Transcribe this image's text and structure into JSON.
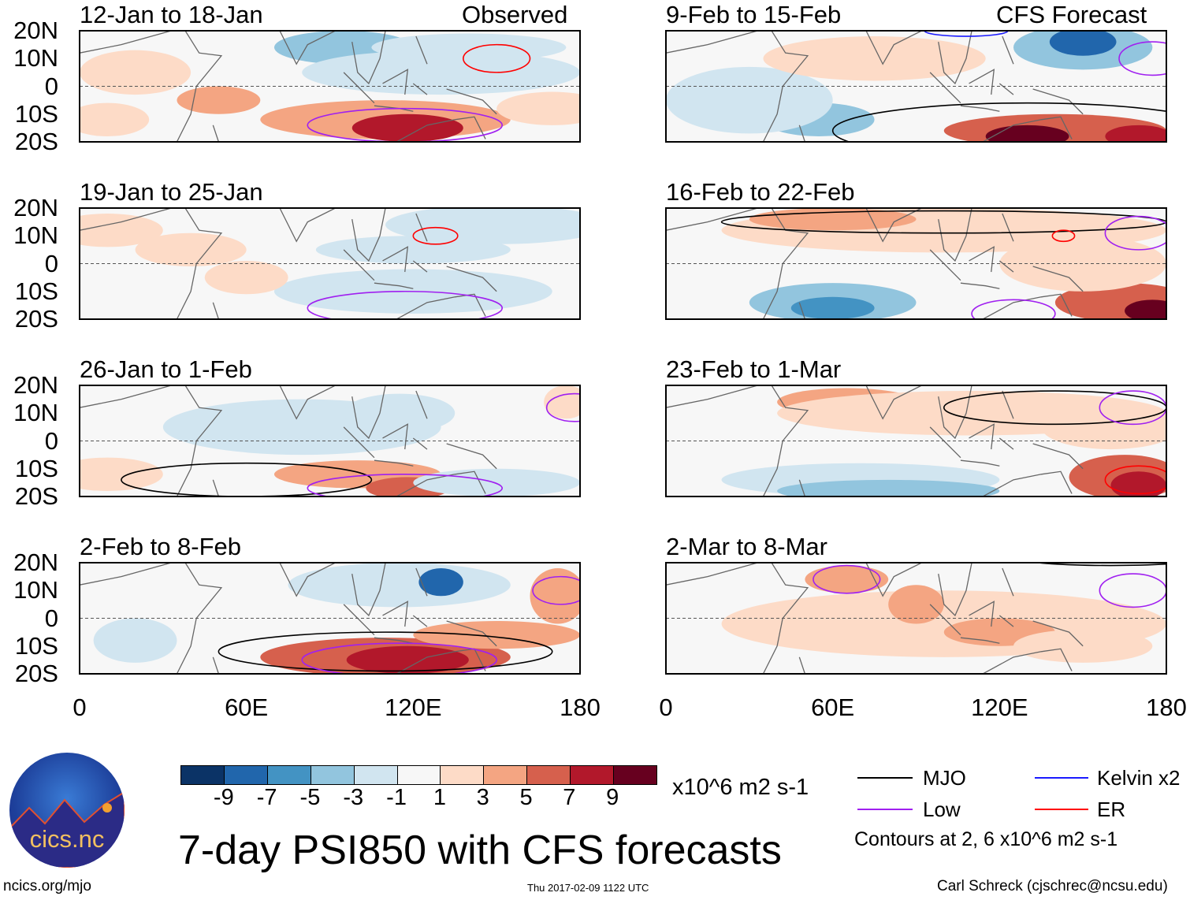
{
  "title": "7-day PSI850 with CFS forecasts",
  "observed_label": "Observed",
  "forecast_label": "CFS Forecast",
  "panels_left": [
    {
      "title": "12-Jan to 18-Jan"
    },
    {
      "title": "19-Jan to 25-Jan"
    },
    {
      "title": "26-Jan to 1-Feb"
    },
    {
      "title": "2-Feb to 8-Feb"
    }
  ],
  "panels_right": [
    {
      "title": "9-Feb to 15-Feb"
    },
    {
      "title": "16-Feb to 22-Feb"
    },
    {
      "title": "23-Feb to 1-Mar"
    },
    {
      "title": "2-Mar to 8-Mar"
    }
  ],
  "lat_ticks": [
    "20N",
    "10N",
    "0",
    "10S",
    "20S"
  ],
  "lon_ticks": [
    "0",
    "60E",
    "120E",
    "180"
  ],
  "colorbar": {
    "labels": [
      "-9",
      "-7",
      "-5",
      "-3",
      "-1",
      "1",
      "3",
      "5",
      "7",
      "9"
    ],
    "colors": [
      "#0b3366",
      "#2166ac",
      "#4393c3",
      "#92c5de",
      "#d1e5f0",
      "#f7f7f7",
      "#fddbc7",
      "#f4a582",
      "#d6604d",
      "#b2182b",
      "#67001f"
    ],
    "units": "x10^6 m2 s-1"
  },
  "legend": {
    "items": [
      {
        "label": "MJO",
        "color": "#000000"
      },
      {
        "label": "Kelvin x2",
        "color": "#1a1aff"
      },
      {
        "label": "Low",
        "color": "#a020f0"
      },
      {
        "label": "ER",
        "color": "#ff0000"
      }
    ],
    "contours_note": "Contours at 2, 6 x10^6 m2 s-1"
  },
  "logo_text": "cics.nc",
  "footer": {
    "url": "ncics.org/mjo",
    "timestamp": "Thu 2017-02-09 1122 UTC",
    "author": "Carl Schreck (cjschrec@ncsu.edu)"
  }
}
